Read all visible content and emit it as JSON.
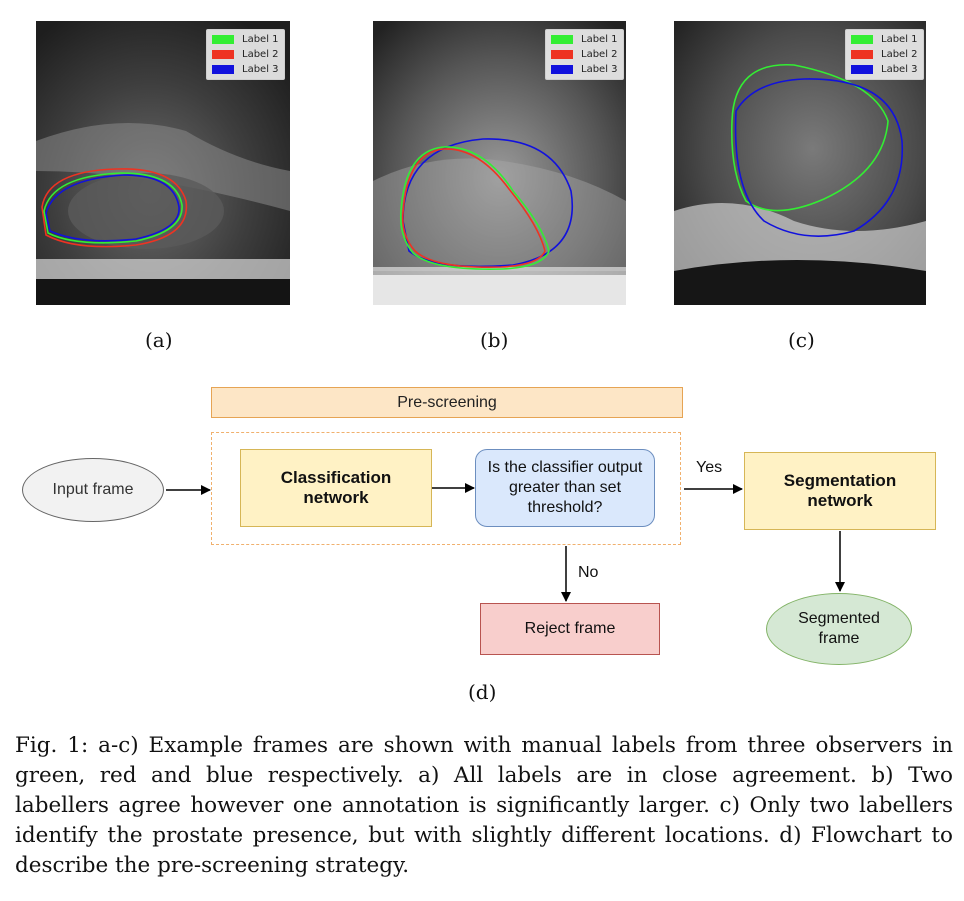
{
  "legend": {
    "entries": [
      {
        "label": "Label 1",
        "color": "#33ee33"
      },
      {
        "label": "Label 2",
        "color": "#ee3322"
      },
      {
        "label": "Label 3",
        "color": "#1111dd"
      }
    ]
  },
  "subfigures": {
    "a": "(a)",
    "b": "(b)",
    "c": "(c)",
    "d": "(d)"
  },
  "flowchart": {
    "prescreening": "Pre-screening",
    "input": "Input frame",
    "classifier": "Classification network",
    "decision": "Is the classifier output greater than set threshold?",
    "yes": "Yes",
    "no": "No",
    "segmentation": "Segmentation network",
    "reject": "Reject frame",
    "segmented": "Segmented frame"
  },
  "caption": "Fig. 1: a-c) Example frames are shown with manual labels from three observers in green, red and blue respectively. a) All labels are in close agreement. b) Two labellers agree however one annotation is significantly larger. c) Only two labellers identify the prostate presence, but with slightly different locations. d) Flowchart to describe the pre-screening strategy."
}
